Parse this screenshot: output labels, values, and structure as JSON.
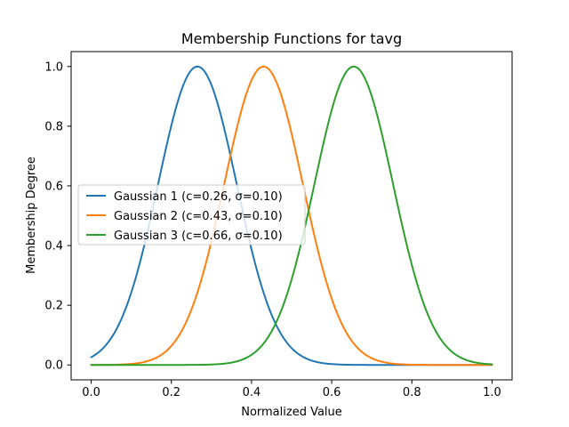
{
  "chart_data": {
    "type": "line",
    "title": "Membership Functions for tavg",
    "xlabel": "Normalized Value",
    "ylabel": "Membership Degree",
    "xlim": [
      -0.05,
      1.05
    ],
    "ylim": [
      -0.05,
      1.05
    ],
    "xticks": [
      "0.0",
      "0.2",
      "0.4",
      "0.6",
      "0.8",
      "1.0"
    ],
    "yticks": [
      "0.0",
      "0.2",
      "0.4",
      "0.6",
      "0.8",
      "1.0"
    ],
    "grid": false,
    "legend_position": "center-left",
    "series": [
      {
        "name": "Gaussian 1 (c=0.26, σ=0.10)",
        "color": "#1f77b4",
        "function": "gaussian",
        "center": 0.265,
        "sigma": 0.098,
        "x": [
          0.0,
          0.05,
          0.1,
          0.15,
          0.2,
          0.265,
          0.3,
          0.35,
          0.4,
          0.45,
          0.5,
          0.6,
          0.7,
          0.8,
          1.0
        ],
        "y": [
          0.026,
          0.09,
          0.24,
          0.5,
          0.8,
          1.0,
          0.94,
          0.69,
          0.39,
          0.17,
          0.06,
          0.003,
          0.0,
          0.0,
          0.0
        ]
      },
      {
        "name": "Gaussian 2 (c=0.43, σ=0.10)",
        "color": "#ff7f0e",
        "function": "gaussian",
        "center": 0.43,
        "sigma": 0.098,
        "x": [
          0.0,
          0.1,
          0.2,
          0.25,
          0.3,
          0.35,
          0.43,
          0.5,
          0.55,
          0.6,
          0.65,
          0.7,
          0.8,
          0.9,
          1.0
        ],
        "y": [
          0.0,
          0.004,
          0.06,
          0.18,
          0.41,
          0.7,
          1.0,
          0.8,
          0.5,
          0.24,
          0.09,
          0.03,
          0.0,
          0.0,
          0.0
        ]
      },
      {
        "name": "Gaussian 3 (c=0.66, σ=0.10)",
        "color": "#2ca02c",
        "function": "gaussian",
        "center": 0.655,
        "sigma": 0.098,
        "x": [
          0.0,
          0.3,
          0.4,
          0.45,
          0.5,
          0.55,
          0.6,
          0.655,
          0.7,
          0.75,
          0.8,
          0.85,
          0.9,
          1.0
        ],
        "y": [
          0.0,
          0.0,
          0.03,
          0.1,
          0.29,
          0.59,
          0.86,
          1.0,
          0.9,
          0.63,
          0.33,
          0.14,
          0.05,
          0.002
        ]
      }
    ]
  }
}
